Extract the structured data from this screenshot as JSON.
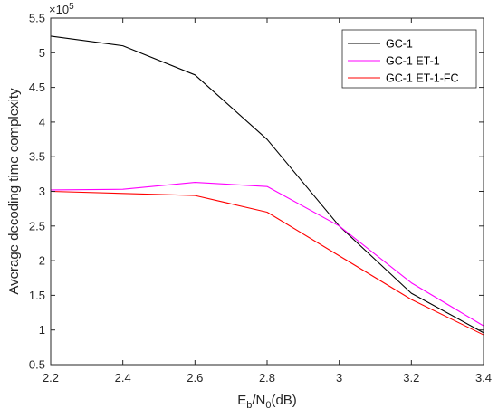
{
  "chart_data": {
    "type": "line",
    "title": "",
    "xlabel": {
      "base": "E",
      "sub1": "b",
      "mid": "/N",
      "sub2": "0",
      "tail": "(dB)"
    },
    "ylabel": "Average decoding time complexity",
    "y_exponent": {
      "base": "×10",
      "power": "5"
    },
    "xlim": [
      2.2,
      3.4
    ],
    "ylim": [
      0.5,
      5.5
    ],
    "x_ticks": [
      "2.2",
      "2.4",
      "2.6",
      "2.8",
      "3",
      "3.2",
      "3.4"
    ],
    "y_ticks": [
      "0.5",
      "1",
      "1.5",
      "2",
      "2.5",
      "3",
      "3.5",
      "4",
      "4.5",
      "5",
      "5.5"
    ],
    "grid": false,
    "legend_position": "top-right",
    "x": [
      2.2,
      2.4,
      2.6,
      2.8,
      3.0,
      3.2,
      3.4
    ],
    "series": [
      {
        "name": "GC-1",
        "color": "#000000",
        "values": [
          5.24,
          5.1,
          4.68,
          3.75,
          2.5,
          1.53,
          0.96
        ]
      },
      {
        "name": "GC-1 ET-1",
        "color": "#ff00ff",
        "values": [
          3.02,
          3.03,
          3.13,
          3.07,
          2.5,
          1.68,
          1.06
        ]
      },
      {
        "name": "GC-1 ET-1-FC",
        "color": "#ff0000",
        "values": [
          3.0,
          2.97,
          2.94,
          2.7,
          2.07,
          1.44,
          0.93
        ]
      }
    ]
  }
}
